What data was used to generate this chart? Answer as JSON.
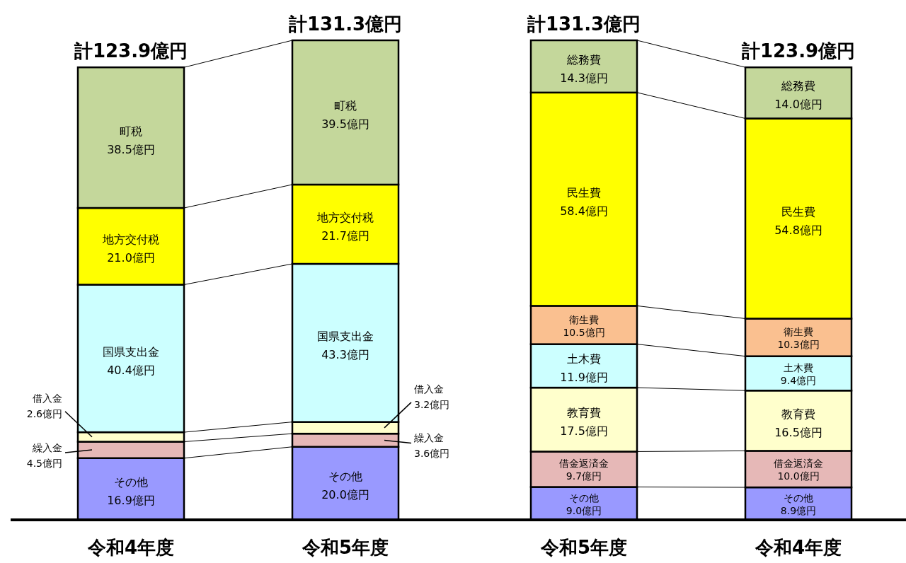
{
  "chart_data": [
    {
      "type": "bar",
      "stacked": true,
      "legend": false,
      "categories": [
        "令和4年度",
        "令和5年度"
      ],
      "totals": [
        "計123.9億円",
        "計131.3億円"
      ],
      "series": [
        {
          "name": "その他",
          "color": "#9999ff",
          "values": [
            16.9,
            20.0
          ],
          "value_labels": [
            "16.9億円",
            "20.0億円"
          ]
        },
        {
          "name": "繰入金",
          "color": "#e6b8b7",
          "values": [
            4.5,
            3.6
          ],
          "value_labels": [
            "4.5億円",
            "3.6億円"
          ]
        },
        {
          "name": "借入金",
          "color": "#ffffcc",
          "values": [
            2.6,
            3.2
          ],
          "value_labels": [
            "2.6億円",
            "3.2億円"
          ]
        },
        {
          "name": "国県支出金",
          "color": "#ccffff",
          "values": [
            40.4,
            43.3
          ],
          "value_labels": [
            "40.4億円",
            "43.3億円"
          ]
        },
        {
          "name": "地方交付税",
          "color": "#ffff00",
          "values": [
            21.0,
            21.7
          ],
          "value_labels": [
            "21.0億円",
            "21.7億円"
          ]
        },
        {
          "name": "町税",
          "color": "#c4d79b",
          "values": [
            38.5,
            39.5
          ],
          "value_labels": [
            "38.5億円",
            "39.5億円"
          ]
        }
      ]
    },
    {
      "type": "bar",
      "stacked": true,
      "legend": false,
      "categories": [
        "令和5年度",
        "令和4年度"
      ],
      "totals": [
        "計131.3億円",
        "計123.9億円"
      ],
      "series": [
        {
          "name": "その他",
          "color": "#9999ff",
          "values": [
            9.0,
            8.9
          ],
          "value_labels": [
            "9.0億円",
            "8.9億円"
          ]
        },
        {
          "name": "借金返済金",
          "color": "#e6b8b7",
          "values": [
            9.7,
            10.0
          ],
          "value_labels": [
            "9.7億円",
            "10.0億円"
          ]
        },
        {
          "name": "教育費",
          "color": "#ffffcc",
          "values": [
            17.5,
            16.5
          ],
          "value_labels": [
            "17.5億円",
            "16.5億円"
          ]
        },
        {
          "name": "土木費",
          "color": "#ccffff",
          "values": [
            11.9,
            9.4
          ],
          "value_labels": [
            "11.9億円",
            "9.4億円"
          ]
        },
        {
          "name": "衛生費",
          "color": "#fac090",
          "values": [
            10.5,
            10.3
          ],
          "value_labels": [
            "10.5億円",
            "10.3億円"
          ]
        },
        {
          "name": "民生費",
          "color": "#ffff00",
          "values": [
            58.4,
            54.8
          ],
          "value_labels": [
            "58.4億円",
            "54.8億円"
          ]
        },
        {
          "name": "総務費",
          "color": "#c4d79b",
          "values": [
            14.3,
            14.0
          ],
          "value_labels": [
            "14.3億円",
            "14.0億円"
          ]
        }
      ]
    }
  ]
}
